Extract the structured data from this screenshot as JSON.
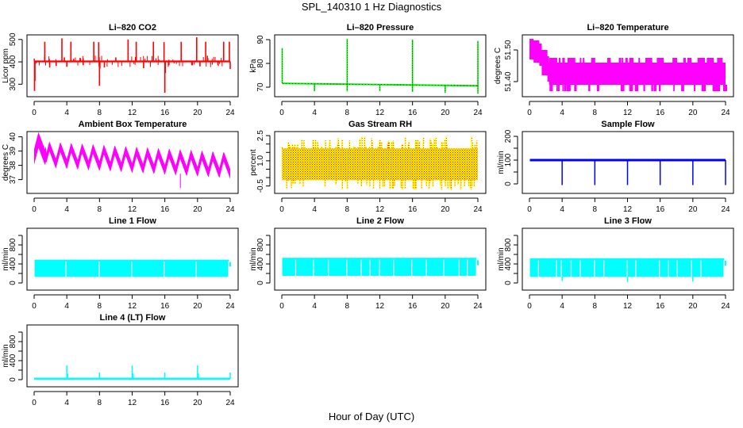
{
  "figure": {
    "title": "SPL_140310  1 Hz Diagnostics",
    "xlabel": "Hour of Day (UTC)"
  },
  "chart_data": [
    {
      "type": "line",
      "title": "Li-820 CO2",
      "ylabel": "Licor ppm",
      "color": "#ff0000",
      "xlim": [
        0,
        24
      ],
      "ylim": [
        255,
        510
      ],
      "xticks": [
        0,
        4,
        8,
        12,
        16,
        20,
        24
      ],
      "yticks": [
        300,
        400,
        500
      ],
      "baseline": 402,
      "band": 4,
      "spikes": [
        {
          "x": 0.05,
          "y": 270
        },
        {
          "x": 0.1,
          "y": 315
        },
        {
          "x": 1.3,
          "y": 490
        },
        {
          "x": 1.9,
          "y": 375
        },
        {
          "x": 2.7,
          "y": 382
        },
        {
          "x": 3.4,
          "y": 505
        },
        {
          "x": 3.7,
          "y": 420
        },
        {
          "x": 4.0,
          "y": 378
        },
        {
          "x": 4.5,
          "y": 490
        },
        {
          "x": 6.0,
          "y": 385
        },
        {
          "x": 7.3,
          "y": 490
        },
        {
          "x": 7.9,
          "y": 488
        },
        {
          "x": 8.0,
          "y": 293
        },
        {
          "x": 8.05,
          "y": 370
        },
        {
          "x": 8.6,
          "y": 375
        },
        {
          "x": 10.0,
          "y": 420
        },
        {
          "x": 11.5,
          "y": 500
        },
        {
          "x": 12.5,
          "y": 490
        },
        {
          "x": 13.4,
          "y": 372
        },
        {
          "x": 14.6,
          "y": 490
        },
        {
          "x": 15.9,
          "y": 488
        },
        {
          "x": 16.0,
          "y": 262
        },
        {
          "x": 16.05,
          "y": 350
        },
        {
          "x": 16.5,
          "y": 385
        },
        {
          "x": 18.0,
          "y": 490
        },
        {
          "x": 19.3,
          "y": 385
        },
        {
          "x": 19.9,
          "y": 510
        },
        {
          "x": 20.3,
          "y": 380
        },
        {
          "x": 21.0,
          "y": 490
        },
        {
          "x": 22.5,
          "y": 385
        },
        {
          "x": 23.2,
          "y": 490
        },
        {
          "x": 23.9,
          "y": 490
        },
        {
          "x": 24.0,
          "y": 368
        }
      ]
    },
    {
      "type": "line",
      "title": "Li-820 Pressure",
      "ylabel": "kPa",
      "color": "#00ee00",
      "xlim": [
        0,
        24
      ],
      "ylim": [
        67,
        91
      ],
      "xticks": [
        0,
        4,
        8,
        12,
        16,
        20,
        24
      ],
      "yticks": [
        70,
        80,
        90
      ],
      "baseline_start": 71.6,
      "baseline_end": 70.6,
      "band": 0.3,
      "spikes": [
        {
          "x": 0.05,
          "y": 86.5
        },
        {
          "x": 4.0,
          "y": 68.3
        },
        {
          "x": 8.0,
          "y": 90.3
        },
        {
          "x": 8.0,
          "y": 68.2
        },
        {
          "x": 12.0,
          "y": 68.3
        },
        {
          "x": 16.0,
          "y": 90.0
        },
        {
          "x": 16.0,
          "y": 68.0
        },
        {
          "x": 20.0,
          "y": 67.6
        },
        {
          "x": 24.0,
          "y": 89.5
        },
        {
          "x": 24.0,
          "y": 67.3
        }
      ]
    },
    {
      "type": "line",
      "title": "Li-820 Temperature",
      "ylabel": "degrees C",
      "color": "#ff00ff",
      "xlim": [
        0,
        24
      ],
      "ylim": [
        51.36,
        51.54
      ],
      "xticks": [
        0,
        4,
        8,
        12,
        16,
        20,
        24
      ],
      "yticks": [
        51.4,
        51.5
      ],
      "ytick_labels": [
        "51.40",
        "51.50"
      ],
      "profile": [
        {
          "x": 0.0,
          "lo": 51.47,
          "hi": 51.535
        },
        {
          "x": 0.5,
          "lo": 51.46,
          "hi": 51.53
        },
        {
          "x": 1.2,
          "lo": 51.45,
          "hi": 51.52
        },
        {
          "x": 1.5,
          "lo": 51.42,
          "hi": 51.5
        },
        {
          "x": 2.2,
          "lo": 51.4,
          "hi": 51.48
        },
        {
          "x": 2.4,
          "lo": 51.39,
          "hi": 51.46
        },
        {
          "x": 24.0,
          "lo": 51.39,
          "hi": 51.46
        }
      ]
    },
    {
      "type": "area",
      "title": "Ambient Box Temperature",
      "ylabel": "degrees C",
      "color": "#ff00ff",
      "xlim": [
        0,
        24
      ],
      "ylim": [
        36.2,
        40.2
      ],
      "xticks": [
        0,
        4,
        8,
        12,
        16,
        20,
        24
      ],
      "yticks": [
        37,
        38,
        39,
        40
      ],
      "cycles_per_day": 18,
      "mean_start": 38.8,
      "mean_end": 38.0,
      "amplitude": 0.6,
      "band": 0.7
    },
    {
      "type": "area",
      "title": "Gas Stream RH",
      "ylabel": "percent",
      "color": "#ffff00",
      "secondary_color": "#ff0000",
      "xlim": [
        0,
        24
      ],
      "ylim": [
        -0.8,
        2.6
      ],
      "xticks": [
        0,
        4,
        8,
        12,
        16,
        20,
        24
      ],
      "yticks": [
        -0.5,
        0.0,
        0.5,
        1.0,
        1.5,
        2.0,
        2.5
      ],
      "ytick_labels": [
        "-0.5",
        "",
        "",
        "1.0",
        "",
        "",
        "2.5"
      ],
      "core_range": [
        -0.15,
        1.75
      ],
      "extreme_range": [
        -0.75,
        2.45
      ]
    },
    {
      "type": "line",
      "title": "Sample Flow",
      "ylabel": "ml/min",
      "color": "#0000ff",
      "xlim": [
        0,
        24
      ],
      "ylim": [
        -30,
        210
      ],
      "xticks": [
        0,
        4,
        8,
        12,
        16,
        20,
        24
      ],
      "yticks": [
        0,
        50,
        100,
        150,
        200
      ],
      "ytick_labels": [
        "0",
        "",
        "100",
        "",
        "200"
      ],
      "baseline": 100,
      "band": 5,
      "dropouts": [
        4,
        8,
        12,
        16,
        20,
        24
      ],
      "dropout_min": -5
    },
    {
      "type": "area",
      "title": "Line 1 Flow",
      "ylabel": "ml/min",
      "color": "#00ffff",
      "xlim": [
        0,
        24
      ],
      "ylim": [
        -100,
        1100
      ],
      "xticks": [
        0,
        4,
        8,
        12,
        16,
        20,
        24
      ],
      "yticks": [
        0,
        200,
        400,
        600,
        800,
        1000
      ],
      "ytick_labels": [
        "0",
        "",
        "400",
        "",
        "800",
        ""
      ],
      "lo": 130,
      "hi": 490,
      "gaps": [
        3.9,
        7.95,
        11.95,
        15.9,
        19.85,
        23.8
      ]
    },
    {
      "type": "area",
      "title": "Line 2 Flow",
      "ylabel": "ml/min",
      "color": "#00ffff",
      "xlim": [
        0,
        24
      ],
      "ylim": [
        -100,
        1100
      ],
      "xticks": [
        0,
        4,
        8,
        12,
        16,
        20,
        24
      ],
      "yticks": [
        0,
        200,
        400,
        600,
        800,
        1000
      ],
      "ytick_labels": [
        "0",
        "",
        "400",
        "",
        "800",
        ""
      ],
      "lo": 150,
      "hi": 530,
      "gaps": [
        1.7,
        3.9,
        5.7,
        7.95,
        9.7,
        10.8,
        11.95,
        13.7,
        15.9,
        17.7,
        19.85,
        21.7,
        22.7,
        23.8
      ]
    },
    {
      "type": "area",
      "title": "Line 3 Flow",
      "ylabel": "ml/min",
      "color": "#00ffff",
      "xlim": [
        0,
        24
      ],
      "ylim": [
        -100,
        1100
      ],
      "xticks": [
        0,
        4,
        8,
        12,
        16,
        20,
        24
      ],
      "yticks": [
        0,
        200,
        400,
        600,
        800,
        1000
      ],
      "ytick_labels": [
        "0",
        "",
        "400",
        "",
        "800",
        ""
      ],
      "lo": 130,
      "hi": 520,
      "gaps": [
        1.1,
        3.3,
        3.9,
        5.1,
        6.2,
        7.95,
        9.1,
        11.95,
        13.0,
        15.9,
        17.0,
        18.1,
        19.85,
        21.0,
        23.8
      ],
      "dips": [
        {
          "x": 4.0,
          "y": 40
        },
        {
          "x": 12.0,
          "y": 20
        },
        {
          "x": 20.0,
          "y": 30
        }
      ]
    },
    {
      "type": "line",
      "title": "Line 4 (LT) Flow",
      "ylabel": "ml/min",
      "color": "#00ffff",
      "xlim": [
        0,
        24
      ],
      "ylim": [
        -100,
        1100
      ],
      "xticks": [
        0,
        4,
        8,
        12,
        16,
        20,
        24
      ],
      "yticks": [
        0,
        200,
        400,
        600,
        800,
        1000
      ],
      "ytick_labels": [
        "0",
        "",
        "400",
        "",
        "800",
        ""
      ],
      "baseline": 20,
      "spikes": [
        {
          "x": 4.0,
          "y": 300
        },
        {
          "x": 4.1,
          "y": 130
        },
        {
          "x": 8.0,
          "y": 150
        },
        {
          "x": 12.0,
          "y": 300
        },
        {
          "x": 12.1,
          "y": 130
        },
        {
          "x": 16.0,
          "y": 150
        },
        {
          "x": 20.0,
          "y": 300
        },
        {
          "x": 20.1,
          "y": 130
        },
        {
          "x": 24.0,
          "y": 150
        }
      ]
    }
  ]
}
